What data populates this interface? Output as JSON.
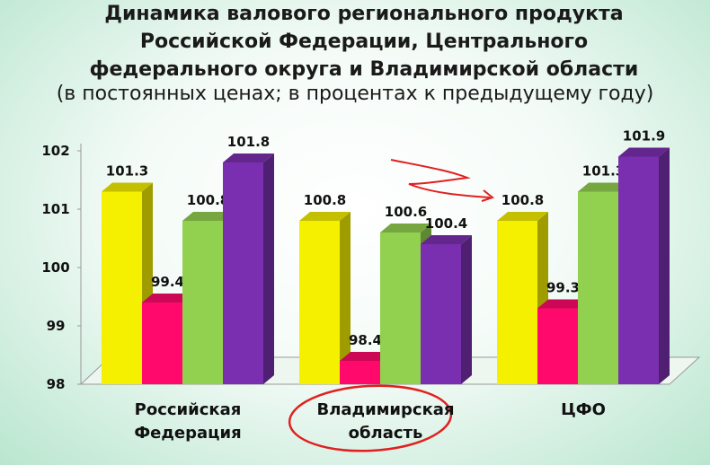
{
  "chart_data": {
    "type": "bar3d",
    "title": "Динамика валового регионального продукта Российской  Федерации, Центрального федерального округа  и Владимирской области",
    "subtitle": "(в постоянных ценах; в процентах к предыдущему году)",
    "categories": [
      "Российская Федерация",
      "Владимирская область",
      "ЦФО"
    ],
    "series": [
      {
        "color": "#f5f000",
        "values": [
          101.3,
          100.8,
          100.8
        ]
      },
      {
        "color": "#ff0a6c",
        "values": [
          99.4,
          98.4,
          99.3
        ]
      },
      {
        "color": "#92d050",
        "values": [
          100.8,
          100.6,
          101.3
        ]
      },
      {
        "color": "#7a2fb0",
        "values": [
          101.8,
          100.4,
          101.9
        ]
      }
    ],
    "ylim": [
      98,
      102
    ],
    "yticks": [
      98,
      99,
      100,
      101,
      102
    ]
  }
}
